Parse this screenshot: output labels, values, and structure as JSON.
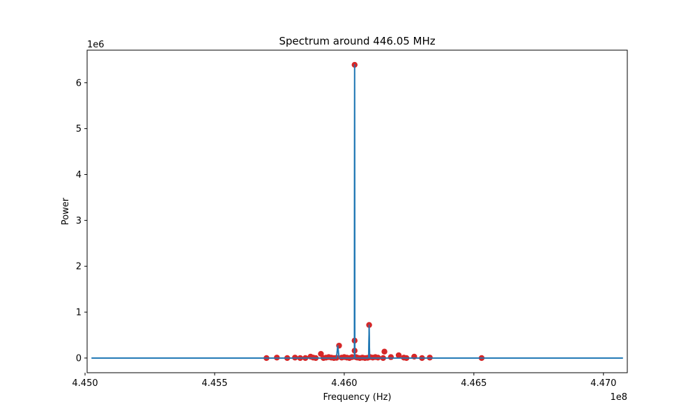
{
  "chart_data": {
    "type": "line",
    "title": "Spectrum around 446.05 MHz",
    "xlabel": "Frequency (Hz)",
    "ylabel": "Power",
    "x_offset_label": "1e8",
    "y_offset_label": "1e6",
    "xlim": [
      445008000,
      447092000
    ],
    "ylim": [
      -320000,
      6710000
    ],
    "x_ticks": [
      445000000,
      445500000,
      446000000,
      446500000,
      447000000
    ],
    "x_tick_labels": [
      "4.450",
      "4.455",
      "4.460",
      "4.465",
      "4.470"
    ],
    "y_ticks": [
      0,
      1000000,
      2000000,
      3000000,
      4000000,
      5000000,
      6000000
    ],
    "y_tick_labels": [
      "0",
      "1",
      "2",
      "3",
      "4",
      "5",
      "6"
    ],
    "grid": false,
    "legend": "none",
    "colors": {
      "line": "#1f77b4",
      "markers": "#d62728"
    },
    "series": [
      {
        "type": "line",
        "x": [
          445025000,
          445700000,
          445920000,
          445970000,
          445975000,
          445980000,
          446020000,
          446035000,
          446039000,
          446040000,
          446041000,
          446045000,
          446094000,
          446096000,
          446098000,
          446102000,
          446105000,
          446150000,
          447075000
        ],
        "values": [
          0,
          0,
          0,
          0,
          270000,
          0,
          0,
          0,
          0,
          6390000,
          0,
          0,
          0,
          720000,
          0,
          0,
          0,
          0,
          0
        ]
      },
      {
        "type": "scatter",
        "x": [
          445700000,
          445740000,
          445780000,
          445810000,
          445830000,
          445850000,
          445870000,
          445880000,
          445890000,
          445910000,
          445920000,
          445930000,
          445940000,
          445950000,
          445960000,
          445970000,
          445980000,
          445990000,
          446000000,
          446010000,
          446020000,
          446030000,
          446040000,
          446040000,
          446040000,
          446045000,
          446050000,
          446060000,
          446070000,
          446080000,
          446090000,
          446096000,
          446100000,
          446110000,
          446120000,
          446130000,
          446150000,
          446155000,
          446180000,
          446210000,
          446230000,
          446240000,
          446270000,
          446300000,
          446330000,
          446530000
        ],
        "values": [
          0,
          10000,
          0,
          10000,
          0,
          0,
          30000,
          10000,
          0,
          90000,
          0,
          10000,
          20000,
          10000,
          0,
          5000,
          270000,
          10000,
          20000,
          10000,
          0,
          20000,
          6390000,
          380000,
          160000,
          20000,
          10000,
          0,
          10000,
          0,
          5000,
          720000,
          20000,
          10000,
          20000,
          10000,
          0,
          140000,
          20000,
          60000,
          10000,
          0,
          30000,
          0,
          10000,
          0
        ]
      }
    ]
  }
}
